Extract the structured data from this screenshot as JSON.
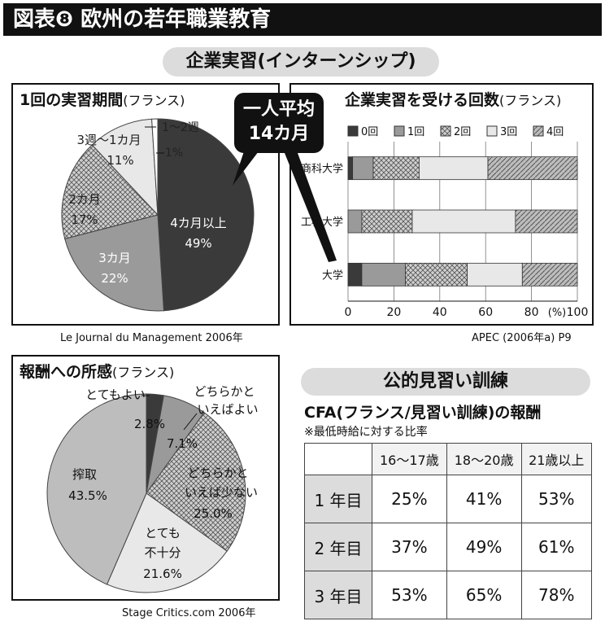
{
  "title": "図表❽ 欧州の若年職業教育",
  "section_internship": "企業実習(インターンシップ)",
  "section_public": "公的見習い訓練",
  "callout": {
    "line1": "一人平均",
    "line2": "14カ月"
  },
  "patterns": {
    "fill_dark": "#3a3a3a",
    "fill_mid": "#9a9a9a",
    "fill_light": "#e8e8e8"
  },
  "chart_data": [
    {
      "type": "pie",
      "title": "1回の実習期間",
      "subtitle": "(フランス)",
      "source": "Le Journal du Management 2006年",
      "slices": [
        {
          "label": "4カ月以上",
          "value": 49,
          "value_label": "49%"
        },
        {
          "label": "3カ月",
          "value": 22,
          "value_label": "22%"
        },
        {
          "label": "2カ月",
          "value": 17,
          "value_label": "17%"
        },
        {
          "label": "3週～1カ月",
          "value": 11,
          "value_label": "11%"
        },
        {
          "label": "1～2週",
          "value": 1,
          "value_label": "1%"
        }
      ]
    },
    {
      "type": "bar",
      "orientation": "horizontal",
      "stacked": true,
      "title": "企業実習を受ける回数",
      "subtitle": "(フランス)",
      "source": "APEC (2006年a) P9",
      "categories": [
        "商科大学",
        "工科大学",
        "大学"
      ],
      "series": [
        {
          "name": "0回",
          "values": [
            2,
            0,
            6
          ]
        },
        {
          "name": "1回",
          "values": [
            9,
            6,
            19
          ]
        },
        {
          "name": "2回",
          "values": [
            20,
            22,
            27
          ]
        },
        {
          "name": "3回",
          "values": [
            30,
            45,
            24
          ]
        },
        {
          "name": "4回",
          "values": [
            39,
            27,
            24
          ]
        }
      ],
      "xlim": [
        0,
        100
      ],
      "xticks": [
        "0",
        "20",
        "40",
        "60",
        "80",
        "100"
      ],
      "xunit": "(%)",
      "legend": "top"
    },
    {
      "type": "pie",
      "title": "報酬への所感",
      "subtitle": "(フランス)",
      "source": "Stage Critics.com 2006年",
      "slices": [
        {
          "label": "とてもよい",
          "value": 2.8,
          "value_label": "2.8%"
        },
        {
          "label": "どちらかといえばよい",
          "value": 7.1,
          "value_label": "7.1%"
        },
        {
          "label": "どちらかといえば少ない",
          "value": 25.0,
          "value_label": "25.0%"
        },
        {
          "label": "とても不十分",
          "value": 21.6,
          "value_label": "21.6%"
        },
        {
          "label": "搾取",
          "value": 43.5,
          "value_label": "43.5%"
        }
      ]
    },
    {
      "type": "table",
      "title": "CFA(フランス/見習い訓練)の報酬",
      "note": "※最低時給に対する比率",
      "columns": [
        "",
        "16～17歳",
        "18～20歳",
        "21歳以上"
      ],
      "rows": [
        [
          "1 年目",
          "25%",
          "41%",
          "53%"
        ],
        [
          "2 年目",
          "37%",
          "49%",
          "61%"
        ],
        [
          "3 年目",
          "53%",
          "65%",
          "78%"
        ]
      ]
    }
  ]
}
